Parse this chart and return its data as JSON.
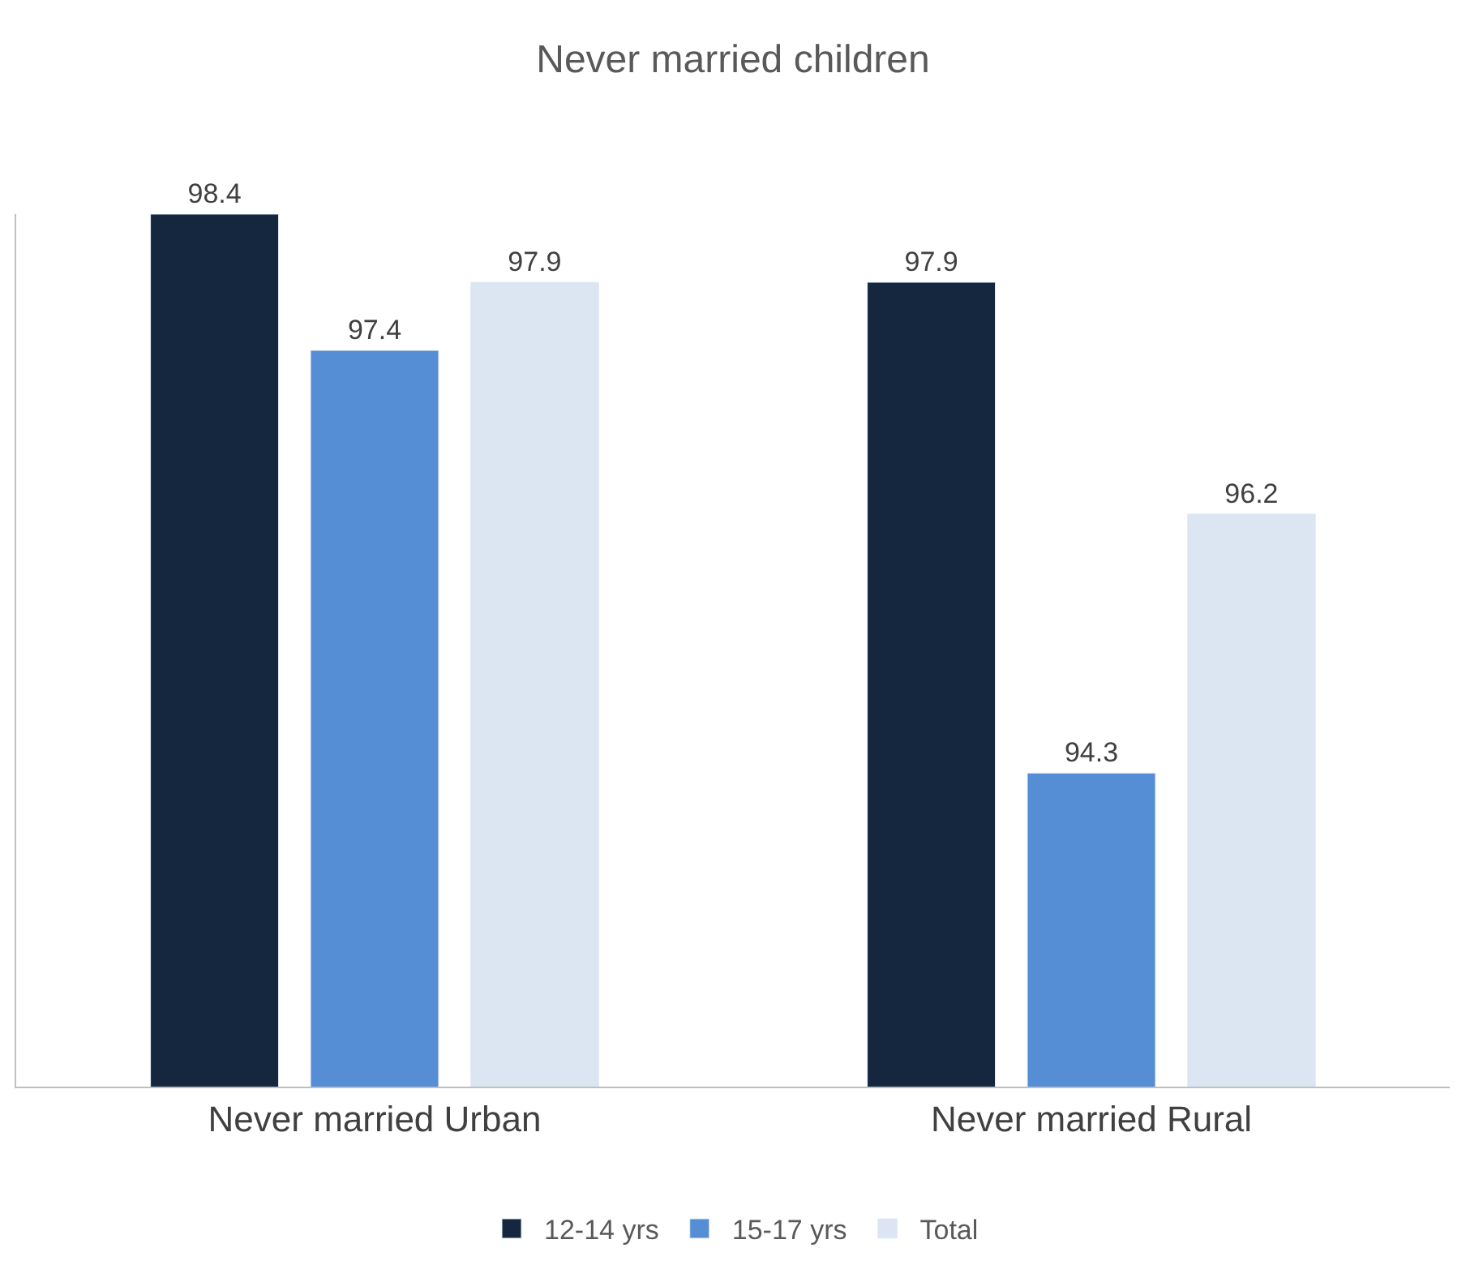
{
  "chart_data": {
    "type": "bar",
    "title": "Never married children",
    "categories": [
      "Never married Urban",
      "Never married Rural"
    ],
    "series": [
      {
        "name": "12-14 yrs",
        "color": "#14273f",
        "values": [
          98.4,
          97.9
        ]
      },
      {
        "name": "15-17 yrs",
        "color": "#558ed5",
        "values": [
          97.4,
          94.3
        ]
      },
      {
        "name": "Total",
        "color": "#dce6f2",
        "values": [
          97.9,
          96.2
        ]
      }
    ],
    "ylim": [
      92,
      98.4
    ],
    "data_labels": true,
    "legend": "bottom",
    "tick_labels": "x"
  }
}
